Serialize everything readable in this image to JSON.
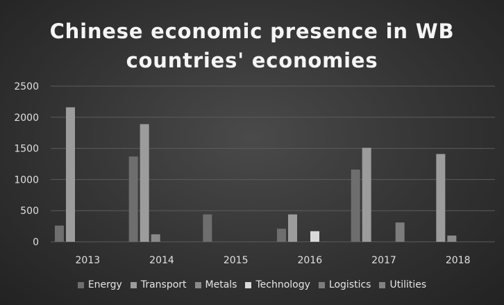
{
  "chart_data": {
    "type": "bar",
    "title": [
      "Chinese economic presence in WB",
      "countries' economies"
    ],
    "categories": [
      "2013",
      "2014",
      "2015",
      "2016",
      "2017",
      "2018"
    ],
    "series": [
      {
        "name": "Energy",
        "color": "#6e6e6e",
        "values": [
          260,
          1370,
          440,
          210,
          1160,
          0
        ]
      },
      {
        "name": "Transport",
        "color": "#9c9c9c",
        "values": [
          2160,
          1890,
          0,
          440,
          1510,
          1410
        ]
      },
      {
        "name": "Metals",
        "color": "#8a8a8a",
        "values": [
          0,
          120,
          0,
          0,
          0,
          100
        ]
      },
      {
        "name": "Technology",
        "color": "#d9d9d9",
        "values": [
          0,
          0,
          0,
          170,
          0,
          0
        ]
      },
      {
        "name": "Logistics",
        "color": "#7d7d7d",
        "values": [
          0,
          0,
          0,
          0,
          310,
          0
        ]
      },
      {
        "name": "Utilities",
        "color": "#828282",
        "values": [
          0,
          0,
          0,
          0,
          0,
          0
        ]
      }
    ],
    "yticks": [
      "0",
      "500",
      "1000",
      "1500",
      "2000",
      "2500"
    ],
    "ylim": [
      0,
      2500
    ],
    "xlabel": "",
    "ylabel": "",
    "grid": true,
    "legend_position": "bottom"
  }
}
